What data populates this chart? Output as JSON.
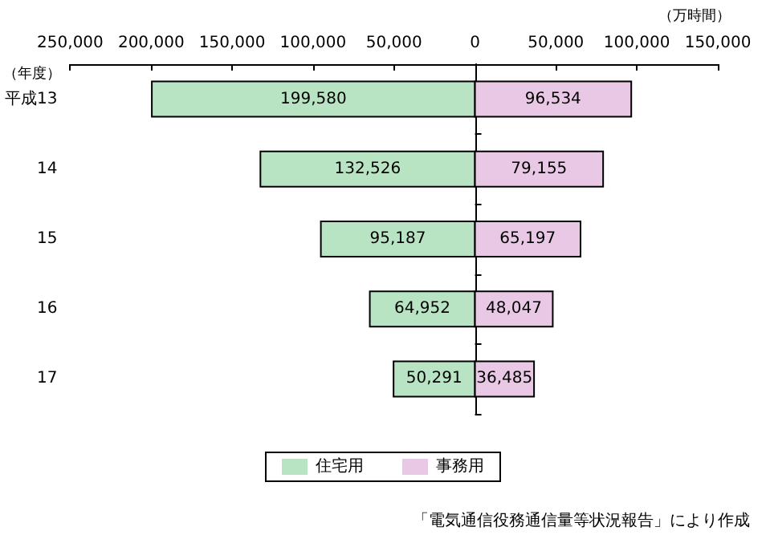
{
  "chart_data": {
    "type": "bar",
    "orientation": "horizontal",
    "xlabel": "（万時間）",
    "ylabel": "（年度）",
    "categories": [
      "平成13",
      "14",
      "15",
      "16",
      "17"
    ],
    "series": [
      {
        "name": "住宅用",
        "color": "#b8e4c4",
        "values": [
          199580,
          132526,
          95187,
          64952,
          50291
        ],
        "base": [
          -199580,
          -132526,
          -95187,
          -64952,
          -50291
        ],
        "value_labels": [
          "199,580",
          "132,526",
          "95,187",
          "64,952",
          "50,291"
        ]
      },
      {
        "name": "事務用",
        "color": "#e8c8e4",
        "values": [
          96534,
          79155,
          65197,
          48047,
          36485
        ],
        "value_labels": [
          "96,534",
          "79,155",
          "65,197",
          "48,047",
          "36,485"
        ]
      }
    ],
    "xlim": [
      -250000,
      150000
    ],
    "xticks": [
      {
        "value": -250000,
        "label": "250,000"
      },
      {
        "value": -200000,
        "label": "200,000"
      },
      {
        "value": -150000,
        "label": "150,000"
      },
      {
        "value": -100000,
        "label": "100,000"
      },
      {
        "value": -50000,
        "label": "50,000"
      },
      {
        "value": 0,
        "label": "0"
      },
      {
        "value": 50000,
        "label": "50,000"
      },
      {
        "value": 100000,
        "label": "100,000"
      },
      {
        "value": 150000,
        "label": "150,000"
      }
    ],
    "legend": "bottom",
    "annotations": [
      "「電気通信役務通信量等状況報告」により作成"
    ]
  }
}
